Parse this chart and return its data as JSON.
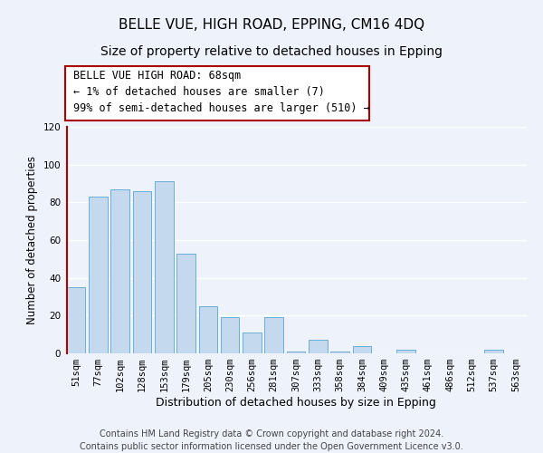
{
  "title": "BELLE VUE, HIGH ROAD, EPPING, CM16 4DQ",
  "subtitle": "Size of property relative to detached houses in Epping",
  "xlabel": "Distribution of detached houses by size in Epping",
  "ylabel": "Number of detached properties",
  "bar_labels": [
    "51sqm",
    "77sqm",
    "102sqm",
    "128sqm",
    "153sqm",
    "179sqm",
    "205sqm",
    "230sqm",
    "256sqm",
    "281sqm",
    "307sqm",
    "333sqm",
    "358sqm",
    "384sqm",
    "409sqm",
    "435sqm",
    "461sqm",
    "486sqm",
    "512sqm",
    "537sqm",
    "563sqm"
  ],
  "bar_values": [
    35,
    83,
    87,
    86,
    91,
    53,
    25,
    19,
    11,
    19,
    1,
    7,
    1,
    4,
    0,
    2,
    0,
    0,
    0,
    2,
    0
  ],
  "bar_color": "#c5d9ee",
  "bar_edge_color": "#6baed6",
  "annotation_line1": "BELLE VUE HIGH ROAD: 68sqm",
  "annotation_line2": "← 1% of detached houses are smaller (7)",
  "annotation_line3": "99% of semi-detached houses are larger (510) →",
  "marker_color": "#aa0000",
  "ylim": [
    0,
    120
  ],
  "yticks": [
    0,
    20,
    40,
    60,
    80,
    100,
    120
  ],
  "footer_line1": "Contains HM Land Registry data © Crown copyright and database right 2024.",
  "footer_line2": "Contains public sector information licensed under the Open Government Licence v3.0.",
  "bg_color": "#edf2fb",
  "grid_color": "#ffffff",
  "title_fontsize": 11,
  "subtitle_fontsize": 10,
  "tick_fontsize": 7.5,
  "ylabel_fontsize": 8.5,
  "xlabel_fontsize": 9,
  "footer_fontsize": 7,
  "annot_fontsize": 8.5
}
